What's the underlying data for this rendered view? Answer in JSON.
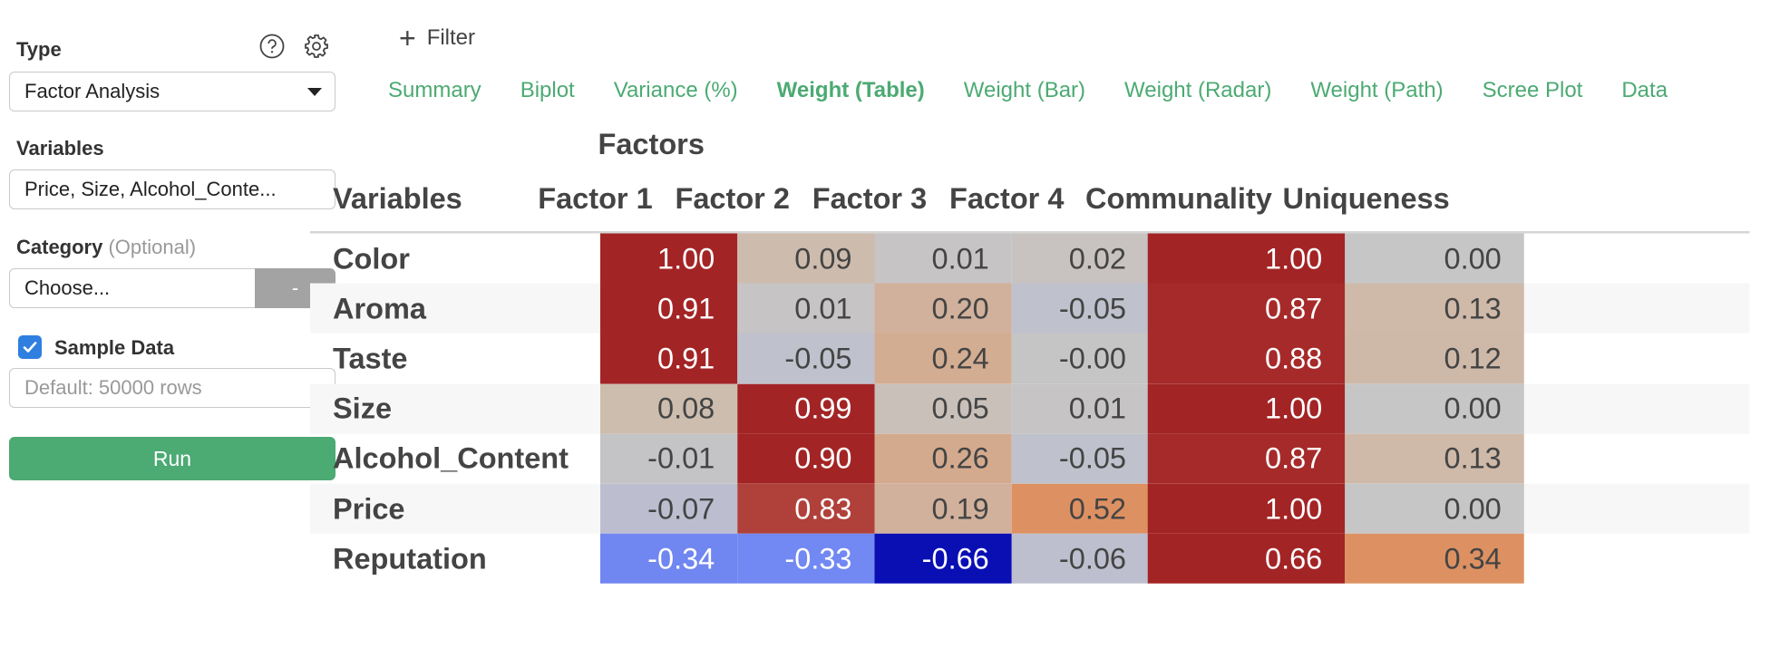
{
  "sidebar": {
    "type_label": "Type",
    "type_value": "Factor Analysis",
    "variables_label": "Variables",
    "variables_value": "Price, Size, Alcohol_Conte...",
    "category_label": "Category",
    "category_optional": "(Optional)",
    "category_placeholder": "Choose...",
    "category_button": "-",
    "sample_label": "Sample Data",
    "sample_checked": true,
    "sample_placeholder": "Default: 50000 rows",
    "run_label": "Run",
    "icons": {
      "help": "help-circle-icon",
      "settings": "gear-icon"
    }
  },
  "main": {
    "filter_label": "Filter",
    "tabs": [
      {
        "label": "Summary",
        "active": false
      },
      {
        "label": "Biplot",
        "active": false
      },
      {
        "label": "Variance (%)",
        "active": false
      },
      {
        "label": "Weight (Table)",
        "active": true
      },
      {
        "label": "Weight (Bar)",
        "active": false
      },
      {
        "label": "Weight (Radar)",
        "active": false
      },
      {
        "label": "Weight (Path)",
        "active": false
      },
      {
        "label": "Scree Plot",
        "active": false
      },
      {
        "label": "Data",
        "active": false
      }
    ],
    "table": {
      "group_header": "Factors",
      "columns": [
        "Variables",
        "Factor 1",
        "Factor 2",
        "Factor 3",
        "Factor 4",
        "Communality",
        "Uniqueness"
      ],
      "rows": [
        {
          "name": "Color",
          "values": [
            "1.00",
            "0.09",
            "0.01",
            "0.02",
            "1.00",
            "0.00"
          ],
          "colors": [
            "#a32425",
            "#cdbcad",
            "#c6c4c4",
            "#c8c2c0",
            "#a32425",
            "#c7c6c6"
          ],
          "text": [
            "#fff",
            "#444",
            "#444",
            "#444",
            "#fff",
            "#444"
          ]
        },
        {
          "name": "Aroma",
          "values": [
            "0.91",
            "0.01",
            "0.20",
            "-0.05",
            "0.87",
            "0.13"
          ],
          "colors": [
            "#a32425",
            "#c6c4c4",
            "#d1b19b",
            "#bfc1cc",
            "#a62a2a",
            "#cfb9a8"
          ],
          "text": [
            "#fff",
            "#444",
            "#444",
            "#444",
            "#fff",
            "#444"
          ]
        },
        {
          "name": "Taste",
          "values": [
            "0.91",
            "-0.05",
            "0.24",
            "-0.00",
            "0.88",
            "0.12"
          ],
          "colors": [
            "#a32425",
            "#bfc1cc",
            "#d3ad92",
            "#c5c5c5",
            "#a62a2a",
            "#ceb9a9"
          ],
          "text": [
            "#fff",
            "#444",
            "#444",
            "#444",
            "#fff",
            "#444"
          ]
        },
        {
          "name": "Size",
          "values": [
            "0.08",
            "0.99",
            "0.05",
            "0.01",
            "1.00",
            "0.00"
          ],
          "colors": [
            "#ccbdaf",
            "#a32425",
            "#c9c0b9",
            "#c6c4c4",
            "#a32425",
            "#c7c6c6"
          ],
          "text": [
            "#444",
            "#fff",
            "#444",
            "#444",
            "#fff",
            "#444"
          ]
        },
        {
          "name": "Alcohol_Content",
          "values": [
            "-0.01",
            "0.90",
            "0.26",
            "-0.05",
            "0.87",
            "0.13"
          ],
          "colors": [
            "#c4c4c6",
            "#a32425",
            "#d4aa8e",
            "#bfc1cc",
            "#a62a2a",
            "#cfb9a8"
          ],
          "text": [
            "#444",
            "#fff",
            "#444",
            "#444",
            "#fff",
            "#444"
          ]
        },
        {
          "name": "Price",
          "values": [
            "-0.07",
            "0.83",
            "0.19",
            "0.52",
            "1.00",
            "0.00"
          ],
          "colors": [
            "#bcbed0",
            "#b0413a",
            "#d1b19c",
            "#dd9162",
            "#a32425",
            "#c7c6c6"
          ],
          "text": [
            "#444",
            "#fff",
            "#444",
            "#444",
            "#fff",
            "#444"
          ]
        },
        {
          "name": "Reputation",
          "values": [
            "-0.34",
            "-0.33",
            "-0.66",
            "-0.06",
            "0.66",
            "0.34"
          ],
          "colors": [
            "#7086f0",
            "#7288f2",
            "#0a0fb4",
            "#bdbfce",
            "#a32425",
            "#dd9162"
          ],
          "text": [
            "#fff",
            "#fff",
            "#fff",
            "#444",
            "#fff",
            "#444"
          ]
        }
      ]
    }
  }
}
